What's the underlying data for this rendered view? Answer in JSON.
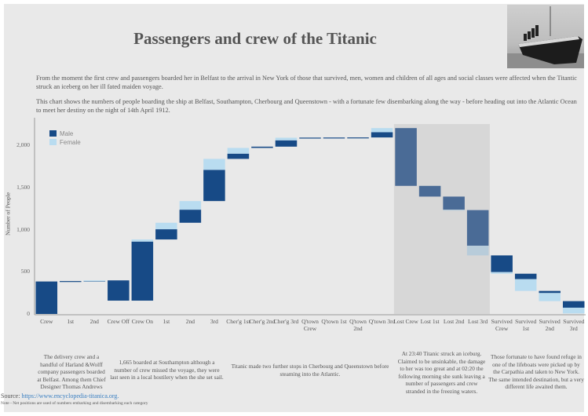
{
  "title": "Passengers and crew of the Titanic",
  "intro": [
    "From the moment the first crew and passengers boarded her in Belfast to the arrival in New York of those that survived, men, women and children of all ages and social classes were affected when the Titantic struck an iceberg on her ill fated maiden voyage.",
    "This chart shows the numbers of people boarding the ship at Belfast, Southampton, Cherbourg and Queenstown - with a fortunate few disembarking along the way - before heading out into the Atlantic Ocean to meet her destiny on the night of 14th April 1912."
  ],
  "chart_data": {
    "type": "waterfall",
    "ylabel": "Number of People",
    "ylim": [
      0,
      2300
    ],
    "yticks": [
      0,
      500,
      1000,
      1500,
      2000
    ],
    "ytick_labels": [
      "0",
      "500",
      "1,000",
      "1,500",
      "2,000"
    ],
    "legend": [
      {
        "name": "Male",
        "color": "#174a86"
      },
      {
        "name": "Female",
        "color": "#b9dcf0"
      }
    ],
    "legend_position": "top-left",
    "highlight_categories": [
      "Lost Crew",
      "Lost 1st",
      "Lost 2nd",
      "Lost 3rd"
    ],
    "categories": [
      "Crew",
      "1st",
      "2nd",
      "Crew Off",
      "Crew On",
      "1st",
      "2nd",
      "3rd",
      "Cher'g 1st",
      "Cher'g 2nd",
      "Cher'g 3rd",
      "Q'town Crew",
      "Q'town 1st",
      "Q'town 2nd",
      "Q'town 3rd",
      "Lost Crew",
      "Lost 1st",
      "Lost 2nd",
      "Lost 3rd",
      "Survived Crew",
      "Survived 1st",
      "Survived 2nd",
      "Survived 3rd"
    ],
    "series": [
      {
        "name": "Male",
        "values": [
          385,
          5,
          4,
          -240,
          700,
          121,
          155,
          370,
          62,
          15,
          75,
          1,
          1,
          1,
          62,
          -685,
          -127,
          -155,
          -422,
          -198,
          -65,
          -25,
          -78
        ]
      },
      {
        "name": "Female",
        "values": [
          0,
          0,
          4,
          0,
          25,
          77,
          102,
          130,
          68,
          0,
          31,
          0,
          0,
          0,
          49,
          0,
          0,
          -5,
          -115,
          -19,
          -139,
          -96,
          -68
        ]
      }
    ]
  },
  "notes": [
    "The delivery crew and a handful of Harland &Wolff company passengers boarded at Belfast. Among them Chief Designer Thomas Andrews",
    "1,665 boarded at Southampton although a number of crew missed the voyage, they were last seen in a local hostilery when the she set sail.",
    "Titanic made two further stops in Cherbourg and Queenstown before steaming into the Atlantic.",
    "At 23:40 Titanic struck an iceburg. Claimed to be unsinkable, the damage to her was too great and at 02:20 the following morning she sunk leaving a number of passengers and crew stranded in the freezing waters.",
    "Those fortunate to have found refuge in one of the lifeboats were picked up by the Carpathia and taken to New York. The same intended destination, but a very different life awaited them."
  ],
  "source_label": "Source:",
  "source_link": "https://www.encyclopedia-titanica.org.",
  "footnote": "Note - Net positions are used of numbers embarking and disembarking each category"
}
